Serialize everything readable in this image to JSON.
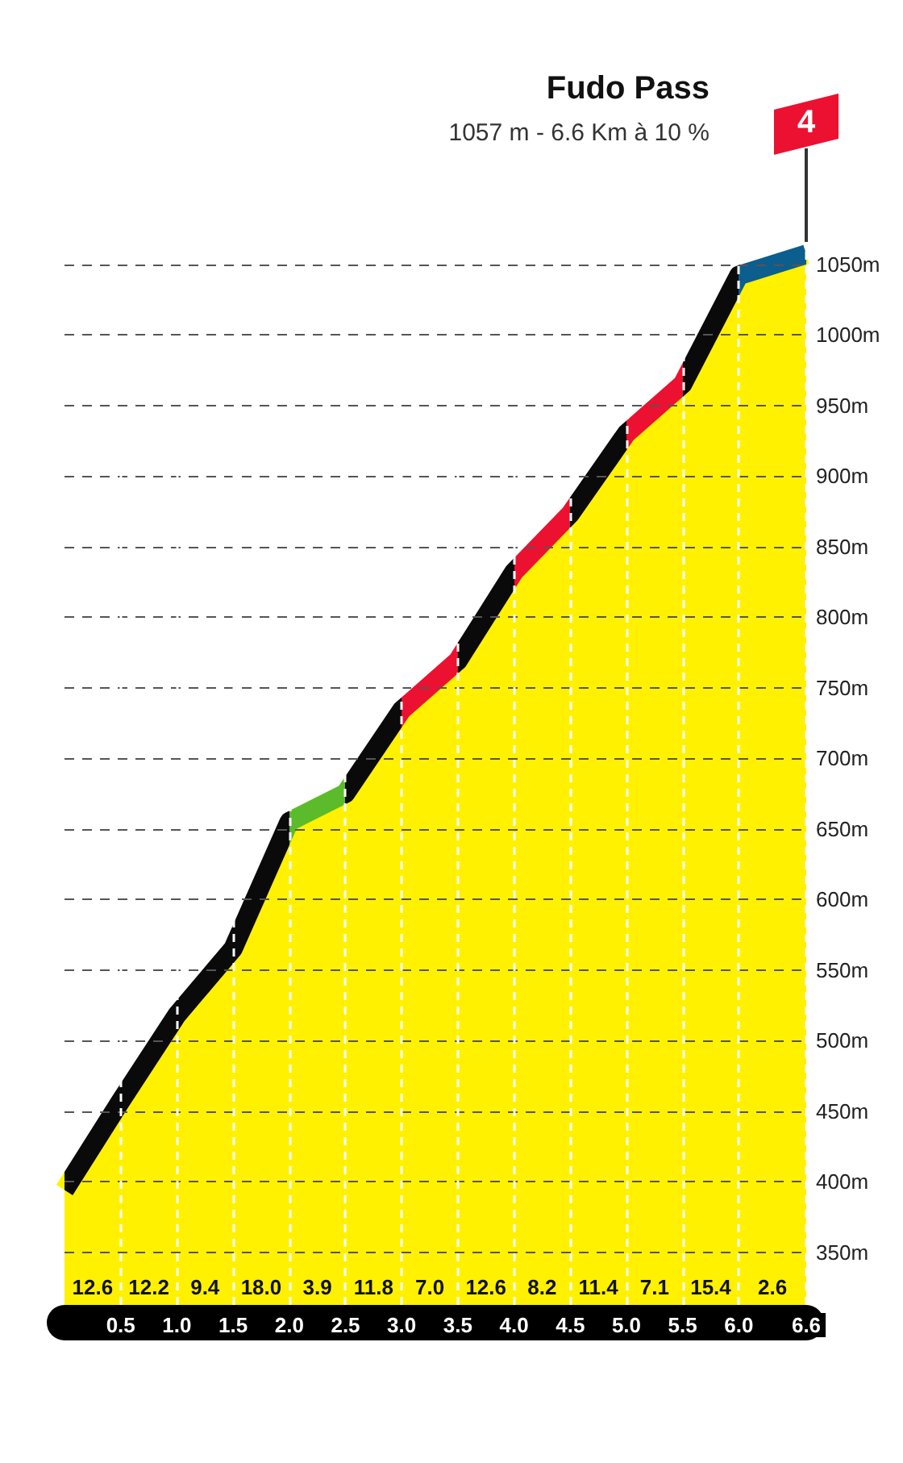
{
  "chart_data": {
    "type": "area",
    "title": "Fudo Pass",
    "subtitle": "1057 m - 6.6 Km à 10 %",
    "x": [
      0,
      0.5,
      1,
      1.5,
      2,
      2.5,
      3,
      3.5,
      4,
      4.5,
      5,
      5.5,
      6,
      6.6
    ],
    "series": [
      {
        "color": "#fff100",
        "colors": [
          null,
          "#0a0a0a",
          "#0a0a0a",
          "#0a0a0a",
          "#0a0a0a",
          "#5cbb2b",
          "#0a0a0a",
          "#ec1131",
          "#0a0a0a",
          "#ec1131",
          "#0a0a0a",
          "#ec1131",
          "#0a0a0a",
          "#0b5e8e"
        ],
        "values": [
          394,
          457,
          518,
          565,
          655,
          675,
          734,
          769,
          832,
          873,
          930,
          965,
          1042,
          1057
        ]
      }
    ],
    "xlim": [
      0,
      6.6
    ],
    "xticks": [
      0.5,
      {
        "value": 1,
        "label": "1.0"
      },
      1.5,
      {
        "value": 2,
        "label": "2.0"
      },
      2.5,
      {
        "value": 3,
        "label": "3.0"
      },
      3.5,
      {
        "value": 4,
        "label": "4.0"
      },
      4.5,
      {
        "value": 5,
        "label": "5.0"
      },
      5.5,
      {
        "value": 6,
        "label": "6.0"
      },
      6.6
    ],
    "ylim": [
      300,
      1100
    ],
    "yticks": [
      {
        "value": 350,
        "label": "350m"
      },
      {
        "value": 400,
        "label": "400m"
      },
      {
        "value": 450,
        "label": "450m"
      },
      {
        "value": 500,
        "label": "500m"
      },
      {
        "value": 550,
        "label": "550m"
      },
      {
        "value": 600,
        "label": "600m"
      },
      {
        "value": 650,
        "label": "650m"
      },
      {
        "value": 700,
        "label": "700m"
      },
      {
        "value": 750,
        "label": "750m"
      },
      {
        "value": 800,
        "label": "800m"
      },
      {
        "value": 850,
        "label": "850m"
      },
      {
        "value": 900,
        "label": "900m"
      },
      {
        "value": 950,
        "label": "950m"
      },
      {
        "value": 1000,
        "label": "1000m"
      },
      {
        "value": 1050,
        "label": "1050m"
      }
    ],
    "grid": true,
    "marker": "none",
    "annotations": [
      "12.6",
      "12.2",
      "9.4",
      "18.0",
      "3.9",
      "11.8",
      "7.0",
      "12.6",
      "8.2",
      "11.4",
      "7.1",
      "15.4",
      "2.6",
      "4"
    ]
  }
}
